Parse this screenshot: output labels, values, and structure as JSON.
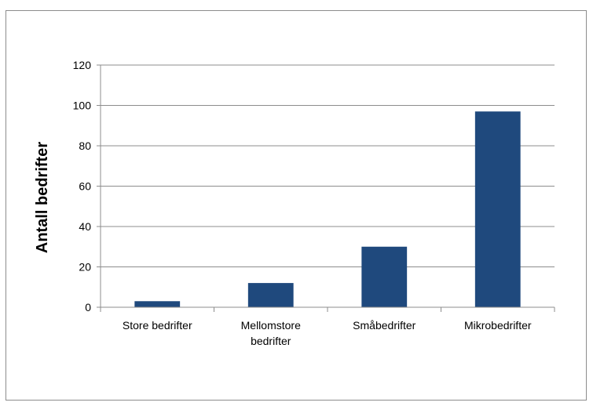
{
  "chart_data": {
    "type": "bar",
    "categories": [
      "Store bedrifter",
      "Mellomstore bedrifter",
      "Småbedrifter",
      "Mikrobedrifter"
    ],
    "category_lines": [
      [
        "Store bedrifter"
      ],
      [
        "Mellomstore",
        "bedrifter"
      ],
      [
        "Småbedrifter"
      ],
      [
        "Mikrobedrifter"
      ]
    ],
    "values": [
      3,
      12,
      30,
      97
    ],
    "title": "",
    "xlabel": "",
    "ylabel": "Antall bedrifter",
    "ylim": [
      0,
      120
    ],
    "yticks": [
      0,
      20,
      40,
      60,
      80,
      100,
      120
    ],
    "grid": true,
    "bar_color": "#1f497d",
    "grid_color": "#8c8c8c",
    "frame_color": "#8c8c8c"
  }
}
